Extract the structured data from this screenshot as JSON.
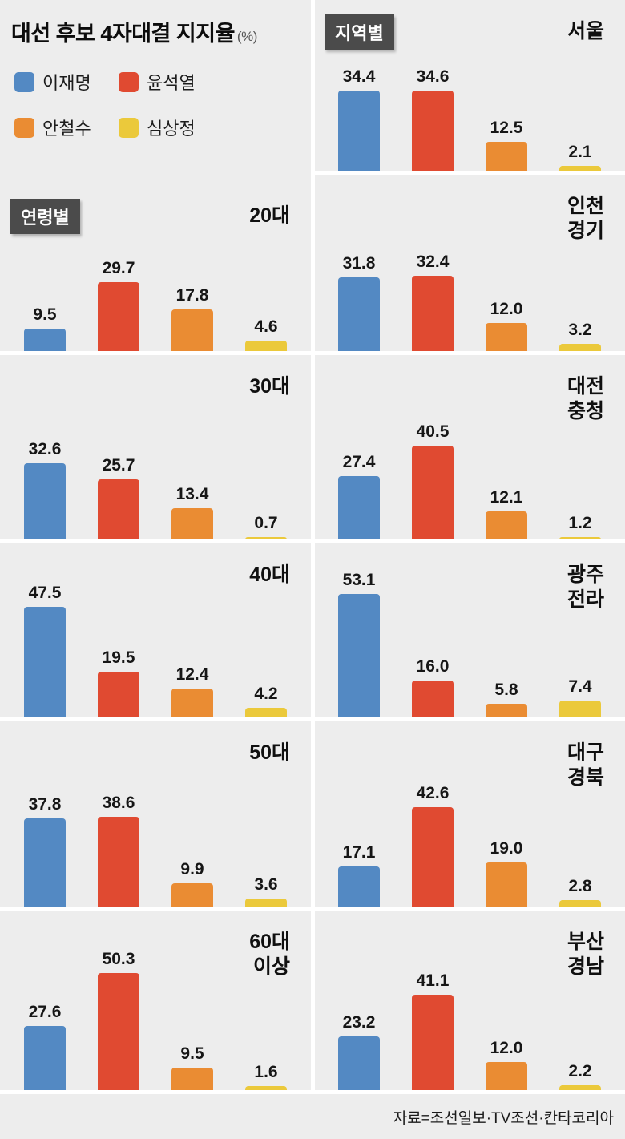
{
  "header": {
    "title": "대선 후보 4자대결 지지율",
    "unit": "(%)"
  },
  "footer": {
    "source": "자료=조선일보·TV조선·칸타코리아"
  },
  "chart_data": {
    "type": "bar",
    "unit": "%",
    "title": "대선 후보 4자대결 지지율 (%)",
    "value_labels": true,
    "grid": false,
    "legend_position": "top-left",
    "series": [
      {
        "name": "이재명",
        "key": "lee-jae-myung",
        "color": "#5389c3"
      },
      {
        "name": "윤석열",
        "key": "yoon-suk-yeol",
        "color": "#e04a31"
      },
      {
        "name": "안철수",
        "key": "ahn-cheol-soo",
        "color": "#ea8c33"
      },
      {
        "name": "심상정",
        "key": "sim-sang-jung",
        "color": "#ebc93b"
      }
    ],
    "sections": [
      {
        "name": "연령별",
        "groups": [
          {
            "category": "20대",
            "values": [
              9.5,
              29.7,
              17.8,
              4.6
            ]
          },
          {
            "category": "30대",
            "values": [
              32.6,
              25.7,
              13.4,
              0.7
            ]
          },
          {
            "category": "40대",
            "values": [
              47.5,
              19.5,
              12.4,
              4.2
            ]
          },
          {
            "category": "50대",
            "values": [
              37.8,
              38.6,
              9.9,
              3.6
            ]
          },
          {
            "category": "60대\n이상",
            "values": [
              27.6,
              50.3,
              9.5,
              1.6
            ]
          }
        ]
      },
      {
        "name": "지역별",
        "groups": [
          {
            "category": "서울",
            "values": [
              34.4,
              34.6,
              12.5,
              2.1
            ]
          },
          {
            "category": "인천\n경기",
            "values": [
              31.8,
              32.4,
              12.0,
              3.2
            ]
          },
          {
            "category": "대전\n충청",
            "values": [
              27.4,
              40.5,
              12.1,
              1.2
            ]
          },
          {
            "category": "광주\n전라",
            "values": [
              53.1,
              16.0,
              5.8,
              7.4
            ]
          },
          {
            "category": "대구\n경북",
            "values": [
              17.1,
              42.6,
              19.0,
              2.8
            ]
          },
          {
            "category": "부산\n경남",
            "values": [
              23.2,
              41.1,
              12.0,
              2.2
            ]
          }
        ]
      }
    ]
  }
}
